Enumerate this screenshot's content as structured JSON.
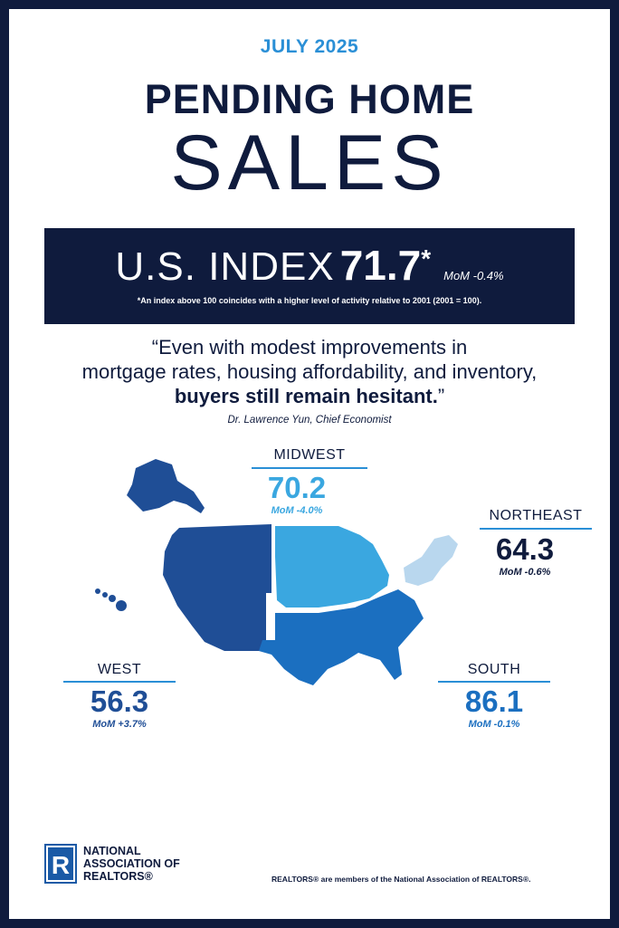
{
  "header": {
    "date": "JULY 2025",
    "title_line1": "PENDING HOME",
    "title_line2": "SALES"
  },
  "index": {
    "label": "U.S. INDEX",
    "value": "71.7",
    "asterisk": "*",
    "mom": "MoM -0.4%",
    "note": "*An index above 100 coincides with a higher level of activity relative to 2001 (2001 = 100)."
  },
  "quote": {
    "line1": "“Even with modest improvements in",
    "line2": "mortgage rates, housing affordability, and inventory,",
    "line3": "buyers still remain hesitant.",
    "line3_close": "”",
    "attribution": "Dr. Lawrence Yun, Chief Economist"
  },
  "regions": {
    "midwest": {
      "name": "MIDWEST",
      "value": "70.2",
      "mom": "MoM -4.0%"
    },
    "northeast": {
      "name": "NORTHEAST",
      "value": "64.3",
      "mom": "MoM -0.6%"
    },
    "west": {
      "name": "WEST",
      "value": "56.3",
      "mom": "MoM +3.7%"
    },
    "south": {
      "name": "SOUTH",
      "value": "86.1",
      "mom": "MoM -0.1%"
    }
  },
  "colors": {
    "navy": "#0f1b3d",
    "accent_blue": "#2a8fd6",
    "west": "#1f4e96",
    "midwest": "#3aa7e0",
    "south": "#1b6fc0",
    "northeast": "#b9d7ee"
  },
  "logo": {
    "letter": "R",
    "line1": "NATIONAL",
    "line2": "ASSOCIATION OF",
    "line3": "REALTORS®"
  },
  "footer": "REALTORS® are members of the National Association of REALTORS®."
}
